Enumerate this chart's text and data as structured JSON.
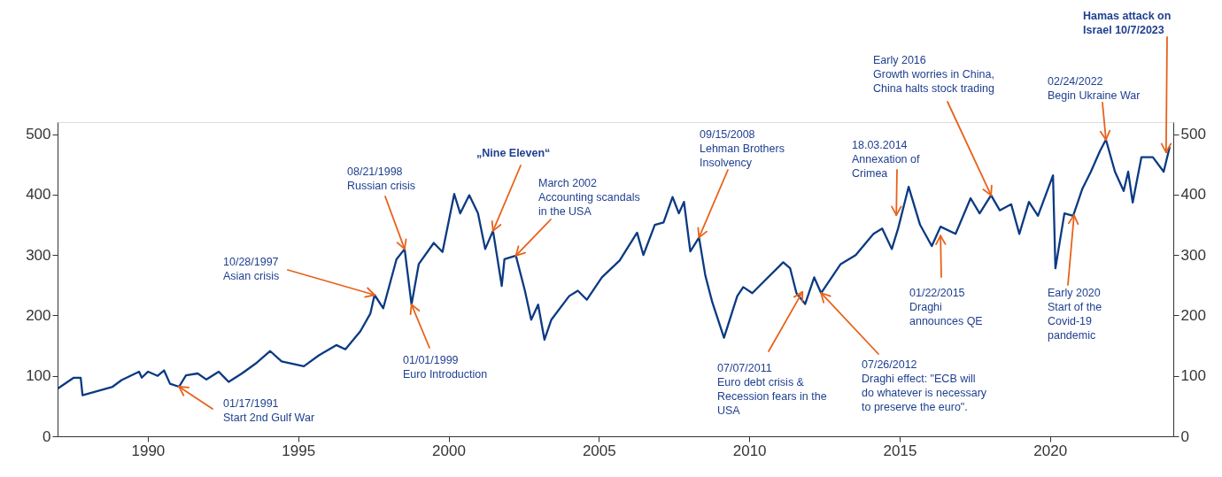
{
  "chart_data": {
    "type": "line",
    "xlim": [
      1987,
      2024.1
    ],
    "xticks": [
      1990,
      1995,
      2000,
      2005,
      2010,
      2015,
      2020
    ],
    "ylim": [
      0,
      520
    ],
    "yticks": [
      0,
      100,
      200,
      300,
      400,
      500
    ],
    "y2lim": [
      0,
      520
    ],
    "y2ticks": [
      0,
      100,
      200,
      300,
      400,
      500
    ],
    "grid": false,
    "series": [
      {
        "color": "#0b3a82",
        "x": [
          1987.01,
          1987.54,
          1987.77,
          1987.83,
          1988.33,
          1988.83,
          1989.13,
          1989.71,
          1989.8,
          1990.01,
          1990.33,
          1990.54,
          1990.74,
          1991.04,
          1991.27,
          1991.66,
          1991.95,
          1992.36,
          1992.69,
          1993.13,
          1993.63,
          1994.07,
          1994.45,
          1995.19,
          1995.69,
          1996.27,
          1996.57,
          1997.07,
          1997.4,
          1997.54,
          1997.83,
          1998.27,
          1998.54,
          1998.77,
          1999.01,
          1999.51,
          1999.8,
          2000.19,
          2000.39,
          2000.69,
          2000.98,
          2001.22,
          2001.48,
          2001.77,
          2001.86,
          2002.24,
          2002.54,
          2002.75,
          2002.98,
          2003.19,
          2003.42,
          2004.01,
          2004.3,
          2004.6,
          2005.1,
          2005.69,
          2006.27,
          2006.48,
          2006.86,
          2007.15,
          2007.45,
          2007.66,
          2007.83,
          2008.04,
          2008.33,
          2008.54,
          2008.77,
          2009.16,
          2009.6,
          2009.8,
          2010.1,
          2010.48,
          2011.13,
          2011.36,
          2011.57,
          2011.86,
          2012.16,
          2012.39,
          2013.04,
          2013.54,
          2014.13,
          2014.42,
          2014.74,
          2014.95,
          2015.3,
          2015.68,
          2016.07,
          2016.36,
          2016.86,
          2017.36,
          2017.66,
          2018.04,
          2018.33,
          2018.71,
          2018.98,
          2019.3,
          2019.6,
          2020.1,
          2020.18,
          2020.48,
          2020.77,
          2021.07,
          2021.36,
          2021.66,
          2021.86,
          2022.16,
          2022.45,
          2022.6,
          2022.75,
          2023.04,
          2023.42,
          2023.78,
          2023.98
        ],
        "values": [
          79,
          97,
          97,
          68,
          75,
          82,
          93,
          107,
          97,
          107,
          100,
          109,
          87,
          82,
          101,
          104,
          94,
          107,
          90,
          104,
          122,
          141,
          124,
          116,
          134,
          151,
          144,
          174,
          203,
          234,
          212,
          293,
          310,
          218,
          285,
          320,
          305,
          401,
          369,
          399,
          369,
          310,
          340,
          249,
          293,
          299,
          241,
          193,
          218,
          160,
          193,
          232,
          241,
          226,
          263,
          291,
          337,
          300,
          350,
          354,
          396,
          369,
          388,
          306,
          329,
          266,
          222,
          163,
          232,
          247,
          237,
          256,
          288,
          278,
          237,
          219,
          263,
          237,
          285,
          300,
          335,
          344,
          310,
          344,
          413,
          350,
          315,
          347,
          335,
          394,
          369,
          399,
          374,
          384,
          335,
          388,
          365,
          432,
          278,
          369,
          365,
          409,
          438,
          472,
          491,
          438,
          406,
          438,
          387,
          462,
          462,
          438,
          479
        ]
      }
    ],
    "annotations": [
      {
        "text": "01/17/1991\nStart 2nd Gulf War",
        "x": 1991.04,
        "y": 82
      },
      {
        "text": "10/28/1997\nAsian crisis",
        "x": 1997.54,
        "y": 234
      },
      {
        "text": "08/21/1998\nRussian crisis",
        "x": 1998.54,
        "y": 310
      },
      {
        "text": "01/01/1999\nEuro Introduction",
        "x": 1998.77,
        "y": 218
      },
      {
        "text": "„Nine Eleven“",
        "x": 2001.48,
        "y": 340
      },
      {
        "text": "March 2002\nAccounting scandals\nin the USA",
        "x": 2002.24,
        "y": 299
      },
      {
        "text": "09/15/2008\nLehman Brothers\nInsolvency",
        "x": 2008.33,
        "y": 329
      },
      {
        "text": "07/07/2011\nEuro debt crisis &\nRecession fears in the\nUSA",
        "x": 2011.77,
        "y": 239
      },
      {
        "text": "07/26/2012\nDraghi effect: \"ECB will\ndo whatever is necessary\nto preserve the euro\".",
        "x": 2012.39,
        "y": 237
      },
      {
        "text": "18.03.2014\nAnnexation of\nCrimea",
        "x": 2014.89,
        "y": 366
      },
      {
        "text": "01/22/2015\nDraghi\nannounces QE",
        "x": 2016.36,
        "y": 332
      },
      {
        "text": "Early 2016\nGrowth worries in China,\nChina halts stock trading",
        "x": 2018.04,
        "y": 399
      },
      {
        "text": "Early 2020\nStart of the\nCovid-19\npandemic",
        "x": 2020.8,
        "y": 366
      },
      {
        "text": "02/24/2022\nBegin Ukraine War",
        "x": 2021.86,
        "y": 491
      },
      {
        "text": "Hamas attack on\nIsrael 10/7/2023",
        "x": 2023.86,
        "y": 470
      }
    ]
  }
}
